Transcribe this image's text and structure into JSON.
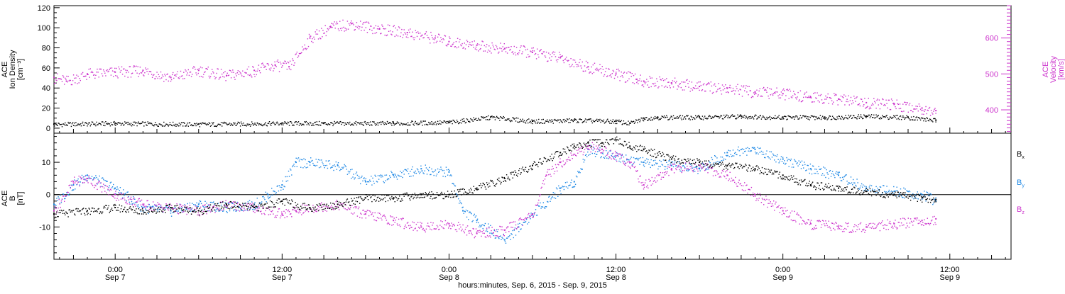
{
  "colors": {
    "axis": "#000000",
    "density": "#000000",
    "velocity": "#cc33cc",
    "bx": "#000000",
    "by": "#1e88e5",
    "bz": "#cc33cc"
  },
  "chart_data": [
    {
      "type": "scatter",
      "panel": "plasma",
      "ylabel_left_lines": [
        "ACE",
        "Ion Density",
        "[cm⁻³]"
      ],
      "ylabel_right_lines": [
        "ACE",
        "Velocity",
        "[km/s]"
      ],
      "y_left_ticks": [
        "0",
        "20",
        "40",
        "60",
        "80",
        "100",
        "120"
      ],
      "y_left_range": [
        -5,
        122
      ],
      "y_right_ticks": [
        "400",
        "500",
        "600"
      ],
      "y_right_range": [
        335,
        690
      ],
      "series": [
        {
          "axis": "left",
          "color": "#000000",
          "x": [
            -4.4,
            0,
            6,
            12,
            15,
            20,
            24,
            27,
            30,
            33,
            36,
            37,
            38,
            39,
            42,
            45,
            48,
            51,
            54,
            57,
            59
          ],
          "y": [
            4,
            5,
            4,
            5,
            5,
            5,
            6,
            11,
            7,
            8,
            7,
            5,
            10,
            11,
            11,
            12,
            11,
            11,
            12,
            11,
            8
          ]
        },
        {
          "axis": "right",
          "color": "#cc33cc",
          "x": [
            -4.4,
            -3.5,
            -2,
            0,
            2,
            4,
            6,
            8,
            10,
            11.5,
            12.5,
            14,
            15.5,
            17,
            19,
            21,
            23,
            24,
            26,
            28,
            30,
            32,
            34,
            36,
            37.5,
            38,
            40,
            42,
            44,
            46,
            48,
            50,
            52,
            54,
            56,
            58,
            59
          ],
          "y": [
            490,
            480,
            500,
            505,
            510,
            490,
            510,
            495,
            510,
            525,
            520,
            600,
            630,
            640,
            625,
            615,
            600,
            590,
            580,
            570,
            560,
            545,
            520,
            500,
            485,
            480,
            475,
            465,
            460,
            450,
            445,
            435,
            430,
            420,
            415,
            405,
            398
          ]
        }
      ]
    },
    {
      "type": "scatter",
      "panel": "field",
      "ylabel_left_lines": [
        "ACE",
        "B",
        "[nT]"
      ],
      "y_left_ticks": [
        "-10",
        "0",
        "10"
      ],
      "y_left_range": [
        -20,
        19
      ],
      "legend": [
        "Bx",
        "By",
        "Bz"
      ],
      "legend_placement": "right",
      "series": [
        {
          "name": "Bx",
          "color": "#000000",
          "x": [
            -4.4,
            -2,
            0,
            2,
            4,
            6,
            8,
            10,
            12,
            14,
            16,
            18,
            20,
            22,
            24,
            26,
            28,
            30,
            32,
            33,
            34,
            35,
            36,
            37,
            38,
            40,
            42,
            44,
            46,
            48,
            50,
            52,
            54,
            56,
            58,
            59
          ],
          "y": [
            -6,
            -5,
            -4,
            -5,
            -4,
            -5,
            -3,
            -4,
            -2,
            -4,
            -3,
            -1,
            -1,
            0,
            0,
            2,
            5,
            9,
            13,
            15,
            16,
            16,
            17,
            15,
            14,
            11,
            10,
            9,
            8,
            6,
            3,
            2,
            1,
            0,
            -1,
            -1.5
          ]
        },
        {
          "name": "By",
          "color": "#1e88e5",
          "x": [
            -4.4,
            -3,
            -2,
            0,
            2,
            4,
            6,
            8,
            10,
            11,
            12,
            13,
            14,
            16,
            18,
            20,
            22,
            24,
            25,
            26,
            28,
            29,
            30,
            32,
            33,
            34,
            36,
            38,
            40,
            42,
            44,
            46,
            48,
            50,
            52,
            54,
            56,
            58,
            59
          ],
          "y": [
            -3,
            3,
            6,
            2,
            -4,
            -5,
            -3,
            -4,
            -3,
            0,
            3,
            10,
            10,
            9,
            4,
            6,
            8,
            7,
            -5,
            -8,
            -14,
            -10,
            -6,
            2,
            4,
            14,
            12,
            10,
            9,
            8,
            13,
            14,
            11,
            8,
            6,
            2,
            1,
            0,
            -2
          ]
        },
        {
          "name": "Bz",
          "color": "#cc33cc",
          "x": [
            -4.4,
            -3,
            -2,
            0,
            2,
            4,
            6,
            8,
            10,
            12,
            13,
            14,
            16,
            18,
            20,
            22,
            24,
            26,
            28,
            30,
            31,
            32,
            34,
            35,
            36,
            37,
            38,
            40,
            42,
            44,
            46,
            48,
            50,
            52,
            54,
            56,
            58,
            59
          ],
          "y": [
            -5,
            4,
            5,
            0,
            -3,
            -4,
            -5,
            -3,
            -4,
            -6,
            -5,
            -4,
            -3,
            -6,
            -8,
            -10,
            -9,
            -12,
            -11,
            -6,
            6,
            10,
            15,
            14,
            12,
            10,
            3,
            8,
            9,
            6,
            0,
            -5,
            -9,
            -10,
            -10,
            -9,
            -8,
            -7.5
          ]
        }
      ]
    }
  ],
  "x_axis": {
    "range": [
      -4.4,
      64.4
    ],
    "ticks": [
      {
        "t": 0,
        "time": "0:00",
        "date": "Sep 7"
      },
      {
        "t": 12,
        "time": "12:00",
        "date": "Sep 7"
      },
      {
        "t": 24,
        "time": "0:00",
        "date": "Sep 8"
      },
      {
        "t": 36,
        "time": "12:00",
        "date": "Sep 8"
      },
      {
        "t": 48,
        "time": "0:00",
        "date": "Sep 9"
      },
      {
        "t": 60,
        "time": "12:00",
        "date": "Sep 9"
      }
    ],
    "label": "hours:minutes, Sep.  6, 2015 - Sep.  9, 2015"
  },
  "labels": {
    "density_axis_line1": "ACE",
    "density_axis_line2": "Ion Density",
    "density_axis_line3": "[cm⁻³]",
    "velocity_axis_line1": "ACE",
    "velocity_axis_line2": "Velocity",
    "velocity_axis_line3": "[km/s]",
    "b_axis_line1": "ACE",
    "b_axis_line2": "B",
    "b_axis_line3": "[nT]",
    "legend_bx_main": "B",
    "legend_bx_sub": "x",
    "legend_by_main": "B",
    "legend_by_sub": "y",
    "legend_bz_main": "B",
    "legend_bz_sub": "z",
    "xlabel": "hours:minutes, Sep.  6, 2015 - Sep.  9, 2015"
  }
}
